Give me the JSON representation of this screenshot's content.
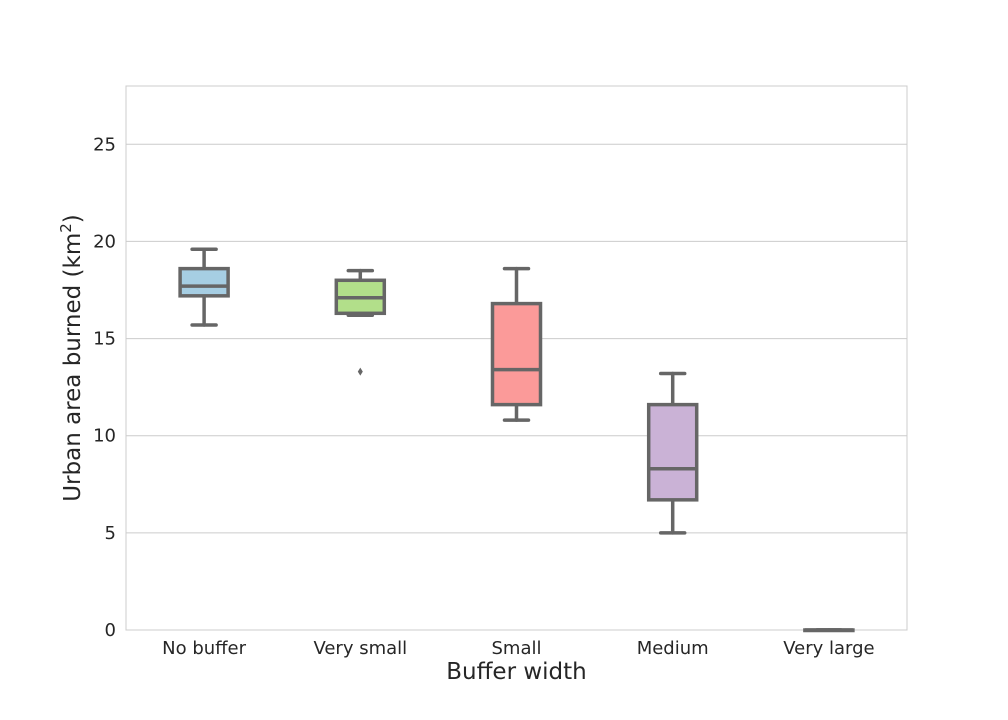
{
  "chart_data": {
    "type": "box",
    "title": "",
    "xlabel": "Buffer width",
    "ylabel_main": "Urban area burned (km",
    "ylabel_sup": "2",
    "ylabel_end": ")",
    "ylim": [
      0,
      28
    ],
    "yticks": [
      0,
      5,
      10,
      15,
      20,
      25
    ],
    "grid": "horizontal",
    "categories": [
      "No buffer",
      "Very small",
      "Small",
      "Medium",
      "Very large"
    ],
    "boxes": [
      {
        "category": "No buffer",
        "whisker_low": 15.7,
        "q1": 17.2,
        "median": 17.7,
        "q3": 18.6,
        "whisker_high": 19.6,
        "outliers": [],
        "color": "#a6cee3"
      },
      {
        "category": "Very small",
        "whisker_low": 16.2,
        "q1": 16.3,
        "median": 17.1,
        "q3": 18.0,
        "whisker_high": 18.5,
        "outliers": [
          13.3
        ],
        "color": "#b2df8a"
      },
      {
        "category": "Small",
        "whisker_low": 10.8,
        "q1": 11.6,
        "median": 13.4,
        "q3": 16.8,
        "whisker_high": 18.6,
        "outliers": [],
        "color": "#fb9a99"
      },
      {
        "category": "Medium",
        "whisker_low": 5.0,
        "q1": 6.7,
        "median": 8.3,
        "q3": 11.6,
        "whisker_high": 13.2,
        "outliers": [],
        "color": "#cab2d6"
      },
      {
        "category": "Very large",
        "whisker_low": 0.0,
        "q1": 0.0,
        "median": 0.0,
        "q3": 0.0,
        "whisker_high": 0.0,
        "outliers": [],
        "color": "#ffff99"
      }
    ]
  }
}
